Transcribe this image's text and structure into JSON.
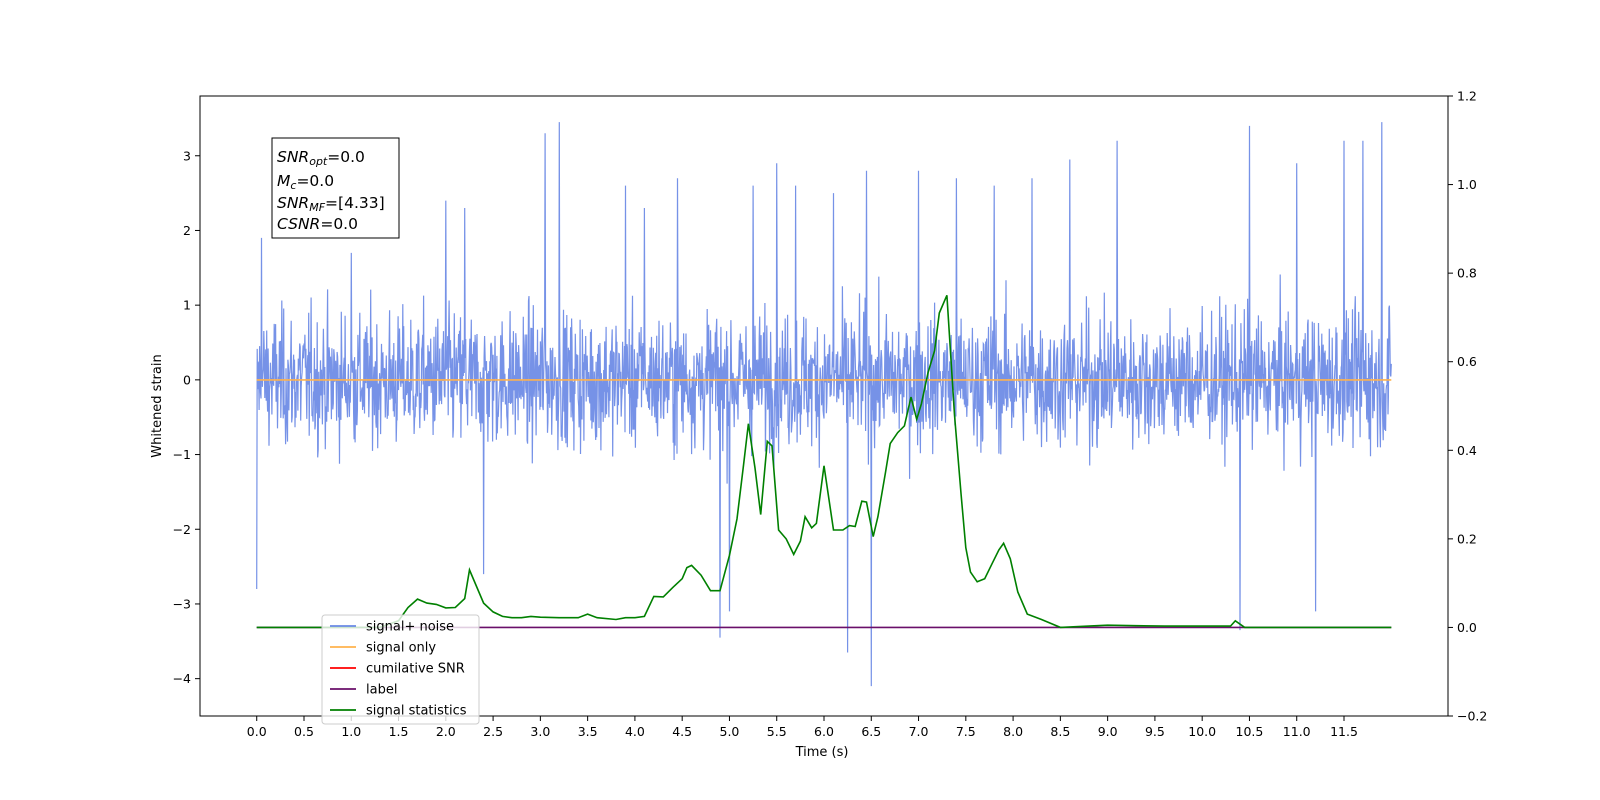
{
  "chart_data": {
    "type": "line",
    "title": "",
    "xlabel": "Time (s)",
    "ylabel": "Whitened strain",
    "y2label": "",
    "xlim": [
      -0.6,
      12.6
    ],
    "ylim": [
      -4.5,
      3.8
    ],
    "y2lim": [
      -0.2,
      1.2
    ],
    "x_ticks": [
      "0.0",
      "0.5",
      "1.0",
      "1.5",
      "2.0",
      "2.5",
      "3.0",
      "3.5",
      "4.0",
      "4.5",
      "5.0",
      "5.5",
      "6.0",
      "6.5",
      "7.0",
      "7.5",
      "8.0",
      "8.5",
      "9.0",
      "9.5",
      "10.0",
      "10.5",
      "11.0",
      "11.5"
    ],
    "y_ticks": [
      "3",
      "2",
      "1",
      "0",
      "−1",
      "−2",
      "−3",
      "−4"
    ],
    "y2_ticks": [
      "1.2",
      "1.0",
      "0.8",
      "0.6",
      "0.4",
      "0.2",
      "0.0",
      "−0.2"
    ],
    "grid": false,
    "legend_placement": "lower-left",
    "info_box": {
      "snr_opt": {
        "base": "SNR",
        "sub": "opt",
        "value": "=0.0"
      },
      "mc": {
        "base": "M",
        "sub": "c",
        "value": "=0.0"
      },
      "snr_mf": {
        "base": "SNR",
        "sub": "MF",
        "value": "=[4.33]"
      },
      "csnr": {
        "base": "CSNR",
        "sub": "",
        "value": "=0.0"
      }
    },
    "series": [
      {
        "name": "signal+ noise",
        "axis": "left",
        "color": "#6a89e5",
        "kind": "noise",
        "x_range": [
          0.0,
          12.0
        ],
        "amplitude_envelope": 1.7,
        "extreme_spikes": [
          [
            0.0,
            -2.8
          ],
          [
            0.05,
            1.9
          ],
          [
            1.0,
            1.7
          ],
          [
            2.0,
            2.4
          ],
          [
            2.2,
            2.3
          ],
          [
            2.4,
            -2.6
          ],
          [
            3.05,
            3.3
          ],
          [
            3.2,
            3.45
          ],
          [
            3.9,
            2.6
          ],
          [
            4.1,
            2.3
          ],
          [
            4.45,
            2.7
          ],
          [
            4.9,
            -3.45
          ],
          [
            5.0,
            -3.1
          ],
          [
            5.25,
            2.6
          ],
          [
            5.5,
            2.9
          ],
          [
            5.7,
            2.6
          ],
          [
            6.1,
            2.5
          ],
          [
            6.25,
            -3.65
          ],
          [
            6.45,
            2.8
          ],
          [
            6.5,
            -4.1
          ],
          [
            7.0,
            2.8
          ],
          [
            7.4,
            2.7
          ],
          [
            7.8,
            2.6
          ],
          [
            8.2,
            2.7
          ],
          [
            8.6,
            2.95
          ],
          [
            9.1,
            3.2
          ],
          [
            10.4,
            -3.35
          ],
          [
            10.5,
            3.4
          ],
          [
            11.0,
            2.9
          ],
          [
            11.2,
            -3.1
          ],
          [
            11.5,
            3.2
          ],
          [
            11.7,
            3.2
          ],
          [
            11.9,
            3.45
          ]
        ]
      },
      {
        "name": "signal only",
        "axis": "left",
        "color": "#ffb24d",
        "kind": "line",
        "x": [
          0.0,
          12.0
        ],
        "y": [
          0.0,
          0.0
        ]
      },
      {
        "name": "cumilative SNR",
        "axis": "right",
        "color": "#ff0000",
        "kind": "line",
        "x": [],
        "y": []
      },
      {
        "name": "label",
        "axis": "right",
        "color": "#6a0f6a",
        "kind": "line",
        "x": [
          0.0,
          12.0
        ],
        "y": [
          0.0,
          0.0
        ]
      },
      {
        "name": "signal statistics",
        "axis": "right",
        "color": "#008000",
        "kind": "line",
        "x": [
          0.0,
          1.3,
          1.5,
          1.6,
          1.7,
          1.8,
          1.9,
          2.0,
          2.1,
          2.2,
          2.25,
          2.4,
          2.5,
          2.6,
          2.7,
          2.8,
          2.9,
          3.0,
          3.2,
          3.4,
          3.5,
          3.6,
          3.8,
          3.9,
          4.0,
          4.1,
          4.2,
          4.3,
          4.4,
          4.5,
          4.55,
          4.6,
          4.7,
          4.8,
          4.9,
          5.0,
          5.08,
          5.15,
          5.2,
          5.27,
          5.33,
          5.4,
          5.45,
          5.52,
          5.6,
          5.68,
          5.75,
          5.8,
          5.87,
          5.92,
          6.0,
          6.1,
          6.2,
          6.27,
          6.33,
          6.4,
          6.45,
          6.52,
          6.57,
          6.65,
          6.7,
          6.78,
          6.85,
          6.92,
          6.98,
          7.03,
          7.1,
          7.17,
          7.22,
          7.3,
          7.38,
          7.45,
          7.5,
          7.55,
          7.62,
          7.7,
          7.78,
          7.85,
          7.9,
          7.97,
          8.05,
          8.15,
          8.3,
          8.5,
          8.8,
          9.0,
          9.3,
          9.6,
          10.0,
          10.2,
          10.3,
          10.35,
          10.45,
          12.0
        ],
        "y": [
          0.0,
          0.0,
          0.015,
          0.045,
          0.064,
          0.055,
          0.052,
          0.044,
          0.045,
          0.065,
          0.13,
          0.055,
          0.035,
          0.025,
          0.022,
          0.022,
          0.025,
          0.023,
          0.022,
          0.022,
          0.03,
          0.022,
          0.018,
          0.022,
          0.022,
          0.025,
          0.07,
          0.069,
          0.09,
          0.11,
          0.135,
          0.14,
          0.118,
          0.083,
          0.083,
          0.163,
          0.245,
          0.368,
          0.46,
          0.36,
          0.255,
          0.42,
          0.41,
          0.22,
          0.2,
          0.165,
          0.195,
          0.25,
          0.225,
          0.235,
          0.365,
          0.22,
          0.22,
          0.23,
          0.228,
          0.285,
          0.283,
          0.205,
          0.25,
          0.35,
          0.415,
          0.44,
          0.455,
          0.52,
          0.47,
          0.505,
          0.575,
          0.625,
          0.71,
          0.75,
          0.48,
          0.3,
          0.18,
          0.125,
          0.103,
          0.11,
          0.145,
          0.175,
          0.19,
          0.155,
          0.08,
          0.03,
          0.018,
          0.0,
          0.003,
          0.005,
          0.004,
          0.003,
          0.003,
          0.003,
          0.003,
          0.015,
          0.0,
          0.0
        ]
      }
    ]
  }
}
